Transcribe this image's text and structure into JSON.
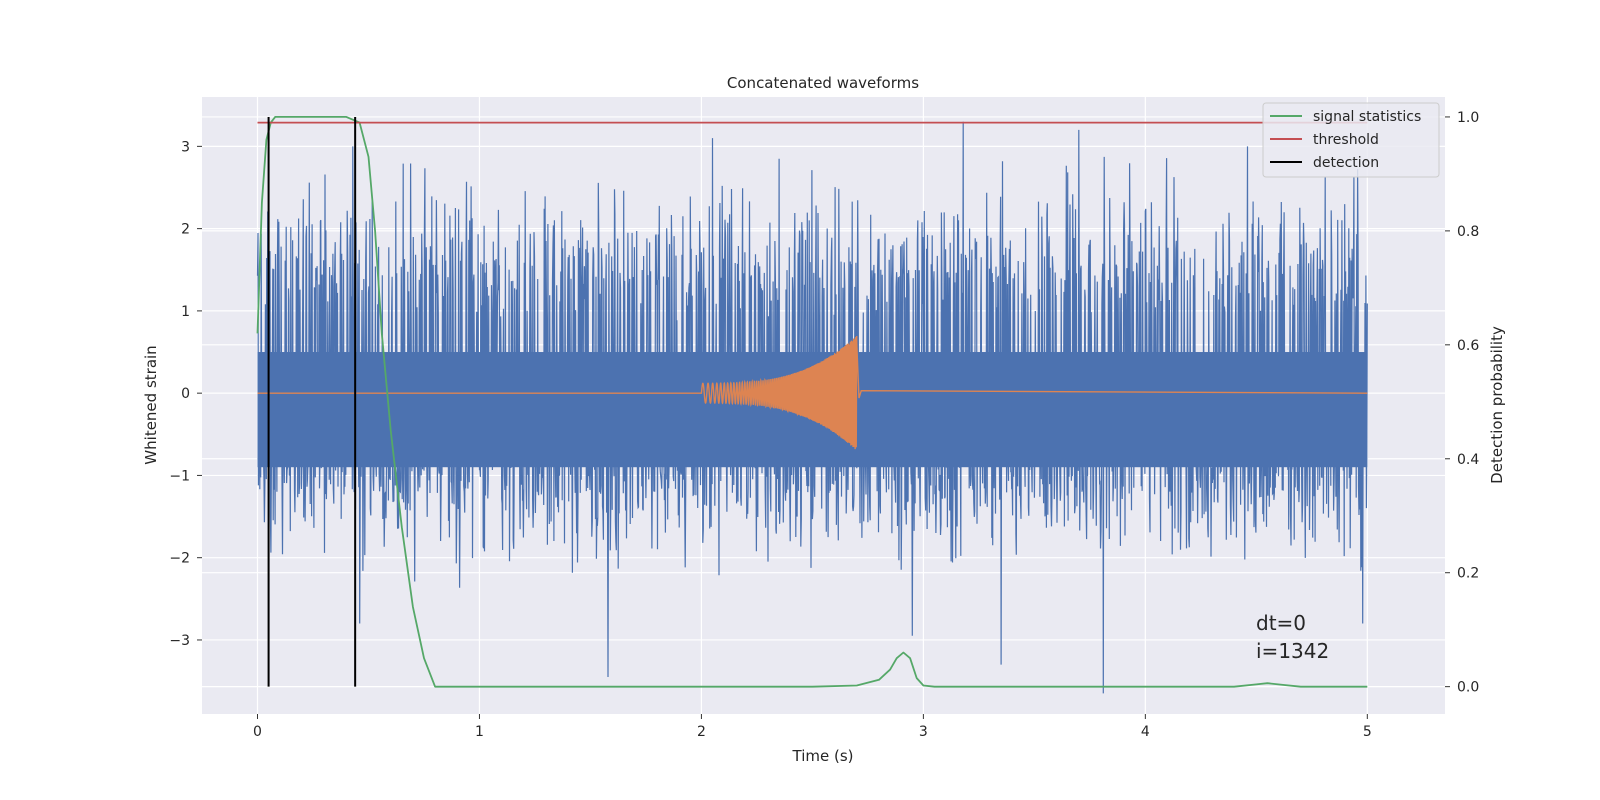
{
  "chart_data": {
    "type": "line",
    "title": "Concatenated waveforms",
    "xlabel": "Time (s)",
    "ylabel": "Whitened strain",
    "y2label": "Detection probability",
    "xlim": [
      -0.25,
      5.35
    ],
    "ylim": [
      -3.9,
      3.6
    ],
    "y2lim": [
      -0.048,
      1.035
    ],
    "xticks": [
      0,
      1,
      2,
      3,
      4,
      5
    ],
    "yticks": [
      -3,
      -2,
      -1,
      0,
      1,
      2,
      3
    ],
    "y2ticks": [
      0.0,
      0.2,
      0.4,
      0.6,
      0.8,
      1.0
    ],
    "grid": true,
    "legend_position": "upper right",
    "legend": [
      {
        "label": "signal statistics",
        "color": "#55a868"
      },
      {
        "label": "threshold",
        "color": "#c44e52"
      },
      {
        "label": "detection",
        "color": "#000000"
      }
    ],
    "series": [
      {
        "kind": "noise",
        "axis": "left",
        "color": "#4c72b0",
        "x_range": [
          0,
          5
        ],
        "core_band": [
          -0.9,
          0.5
        ],
        "typical_extent": [
          -2.0,
          2.5
        ],
        "spikes": [
          {
            "x": 0.43,
            "y": 3.0
          },
          {
            "x": 0.46,
            "y": -2.8
          },
          {
            "x": 1.58,
            "y": -3.45
          },
          {
            "x": 2.05,
            "y": 3.1
          },
          {
            "x": 3.18,
            "y": 3.3
          },
          {
            "x": 3.7,
            "y": 3.2
          },
          {
            "x": 3.81,
            "y": -3.65
          },
          {
            "x": 4.46,
            "y": 3.0
          },
          {
            "x": 2.95,
            "y": -2.95
          },
          {
            "x": 3.35,
            "y": -3.3
          },
          {
            "x": 4.98,
            "y": -2.8
          },
          {
            "x": 2.35,
            "y": 2.85
          }
        ]
      },
      {
        "kind": "chirp",
        "axis": "left",
        "color": "#dd8452",
        "x_range": [
          0,
          5
        ],
        "chirp_start": 2.0,
        "chirp_end": 2.7,
        "start_amplitude": 0.12,
        "peak_amplitude": 0.7
      },
      {
        "name": "signal statistics",
        "axis": "right",
        "color": "#55a868",
        "x": [
          0.0,
          0.02,
          0.04,
          0.06,
          0.08,
          0.12,
          0.2,
          0.3,
          0.4,
          0.46,
          0.5,
          0.53,
          0.56,
          0.6,
          0.65,
          0.7,
          0.75,
          0.8,
          1.0,
          2.0,
          2.5,
          2.7,
          2.8,
          2.85,
          2.88,
          2.91,
          2.94,
          2.97,
          3.0,
          3.05,
          3.5,
          4.0,
          4.4,
          4.5,
          4.55,
          4.62,
          4.7,
          5.0
        ],
        "values": [
          0.62,
          0.85,
          0.96,
          0.99,
          1.0,
          1.0,
          1.0,
          1.0,
          1.0,
          0.99,
          0.93,
          0.8,
          0.62,
          0.45,
          0.28,
          0.14,
          0.05,
          0.0,
          0.0,
          0.0,
          0.0,
          0.002,
          0.012,
          0.03,
          0.05,
          0.06,
          0.05,
          0.015,
          0.002,
          0.0,
          0.0,
          0.0,
          0.0,
          0.004,
          0.006,
          0.003,
          0.0,
          0.0
        ]
      },
      {
        "name": "threshold",
        "axis": "right",
        "color": "#c44e52",
        "x": [
          0,
          5
        ],
        "values": [
          0.99,
          0.99
        ]
      },
      {
        "name": "detection",
        "axis": "right",
        "color": "#000000",
        "vlines": [
          0.05,
          0.44
        ],
        "vline_range": [
          0.0,
          1.0
        ]
      }
    ],
    "annotation": {
      "lines": [
        "dt=0",
        "i=1342"
      ],
      "x": 4.5,
      "y": -3.3
    }
  }
}
